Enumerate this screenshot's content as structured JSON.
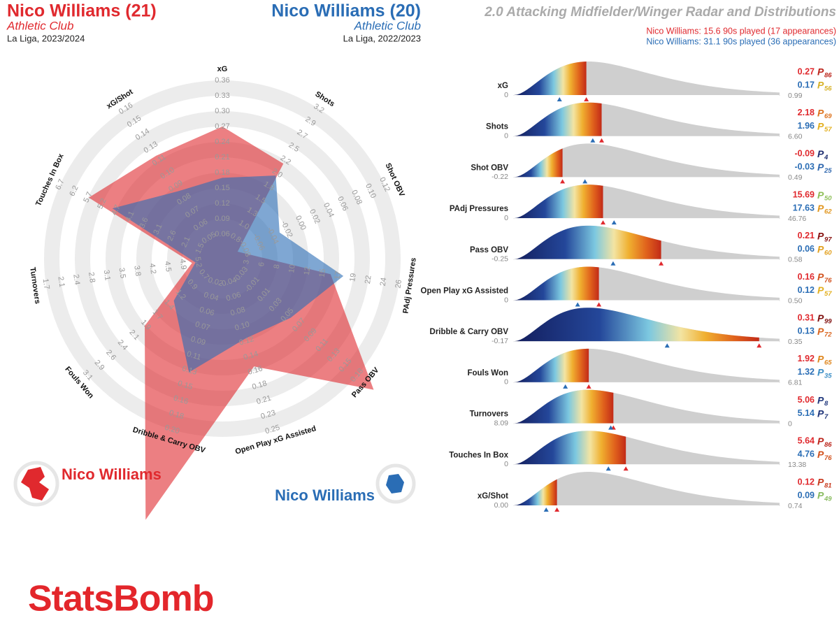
{
  "header": {
    "left": {
      "title": "Nico Williams (21)",
      "team": "Athletic Club",
      "season": "La Liga, 2023/2024"
    },
    "right": {
      "title": "Nico Williams (20)",
      "team": "Athletic Club",
      "season": "La Liga, 2022/2023"
    },
    "title": "2.0 Attacking Midfielder/Winger Radar and Distributions",
    "played": [
      "Nico Williams: 15.6 90s played (17 appearances)",
      "Nico Williams: 31.1 90s played (36 appearances)"
    ]
  },
  "logo": "StatsBomb",
  "chart_data": [
    {
      "type": "radar",
      "series": [
        {
          "name": "Nico Williams",
          "color": "#e0292e",
          "values": [
            0.27,
            2.18,
            -0.09,
            15.69,
            0.21,
            0.16,
            0.31,
            1.92,
            5.06,
            5.64,
            0.12
          ]
        },
        {
          "name": "Nico Williams",
          "color": "#2a6db5",
          "values": [
            0.17,
            1.96,
            -0.03,
            17.63,
            0.06,
            0.12,
            0.13,
            1.32,
            5.14,
            4.76,
            0.09
          ]
        }
      ],
      "axes": [
        {
          "name": "xG",
          "lim": [
            0.06,
            0.36
          ],
          "ticks": [
            0.06,
            0.09,
            0.12,
            0.15,
            0.18,
            0.21,
            0.24,
            0.27,
            {
              "value": 0.3,
              "label": "0.30"
            },
            0.33,
            0.36
          ]
        },
        {
          "name": "Shots",
          "lim": [
            0.8,
            3.2
          ],
          "ticks": [
            0.8,
            {
              "value": 1,
              "label": "1.0"
            },
            1.3,
            1.5,
            1.8,
            {
              "value": 2,
              "label": "2.0"
            },
            2.2,
            2.5,
            2.7,
            2.9,
            3.2
          ]
        },
        {
          "name": "Shot OBV",
          "lim": [
            -0.08,
            0.12
          ],
          "ticks": [
            -0.08,
            -0.06,
            -0.04,
            -0.02,
            {
              "value": 0,
              "label": "0.00"
            },
            0.02,
            0.04,
            0.06,
            0.08,
            {
              "value": 0.1,
              "label": "0.10"
            },
            0.12
          ]
        },
        {
          "name": "PAdj Pressures",
          "lim": [
            3,
            26
          ],
          "ticks": [
            3,
            6,
            8,
            10,
            12,
            15,
            17,
            19,
            22,
            24,
            26
          ]
        },
        {
          "name": "Pass OBV",
          "lim": [
            -0.03,
            0.18
          ],
          "ticks": [
            -0.03,
            -0.01,
            0.01,
            0.03,
            0.05,
            0.07,
            0.09,
            0.11,
            0.13,
            0.15,
            0.18
          ]
        },
        {
          "name": "Open Play xG Assisted",
          "lim": [
            0.04,
            0.25
          ],
          "ticks": [
            0.04,
            0.06,
            0.08,
            {
              "value": 0.1,
              "label": "0.10"
            },
            0.12,
            0.14,
            0.16,
            0.18,
            0.21,
            0.23,
            0.25
          ]
        },
        {
          "name": "Dribble & Carry OBV",
          "lim": [
            0.02,
            0.2
          ],
          "ticks": [
            0.02,
            0.04,
            0.06,
            0.07,
            0.09,
            0.11,
            0.13,
            0.15,
            0.16,
            0.18,
            {
              "value": 0.2,
              "label": "0.20"
            }
          ]
        },
        {
          "name": "Fouls Won",
          "lim": [
            0.7,
            3.1
          ],
          "ticks": [
            0.7,
            0.9,
            1.2,
            1.4,
            1.7,
            1.9,
            2.1,
            2.4,
            2.6,
            2.9,
            3.1
          ]
        },
        {
          "name": "Turnovers",
          "lim": [
            5.2,
            1.7
          ],
          "ticks": [
            5.2,
            4.9,
            4.5,
            4.2,
            3.8,
            3.5,
            3.1,
            2.8,
            2.4,
            2.1,
            1.7
          ]
        },
        {
          "name": "Touches In Box",
          "lim": [
            1.5,
            6.7
          ],
          "ticks": [
            1.5,
            2.1,
            2.6,
            3.1,
            3.6,
            4.1,
            4.7,
            5.2,
            5.7,
            6.2,
            6.7
          ]
        },
        {
          "name": "xG/Shot",
          "lim": [
            0.05,
            0.16
          ],
          "ticks": [
            0.05,
            0.06,
            0.07,
            0.08,
            0.09,
            {
              "value": 0.1,
              "label": "0.10"
            },
            0.11,
            0.13,
            0.14,
            0.15,
            0.16
          ]
        }
      ]
    },
    {
      "type": "distributions",
      "percentile_prefix": "P",
      "colors": [
        "#e0292e",
        "#2a6db5"
      ],
      "rows": [
        {
          "name": "xG",
          "xlim": [
            0,
            0.99
          ],
          "xticks": [
            0,
            0.99
          ],
          "values": [
            0.27,
            0.17
          ],
          "percentiles": [
            86,
            56
          ]
        },
        {
          "name": "Shots",
          "xlim": [
            0,
            6.6
          ],
          "xticks": [
            0,
            {
              "value": 6.6,
              "label": "6.60"
            }
          ],
          "values": [
            2.18,
            1.96
          ],
          "percentiles": [
            69,
            57
          ]
        },
        {
          "name": "Shot OBV",
          "xlim": [
            -0.22,
            0.49
          ],
          "xticks": [
            -0.22,
            0.49
          ],
          "values": [
            -0.09,
            -0.03
          ],
          "percentiles": [
            4,
            25
          ]
        },
        {
          "name": "PAdj Pressures",
          "xlim": [
            0,
            46.76
          ],
          "xticks": [
            0,
            46.76
          ],
          "values": [
            15.69,
            17.63
          ],
          "percentiles": [
            50,
            62
          ]
        },
        {
          "name": "Pass OBV",
          "xlim": [
            -0.25,
            0.58
          ],
          "xticks": [
            -0.25,
            0.58
          ],
          "values": [
            0.21,
            0.06
          ],
          "percentiles": [
            97,
            60
          ]
        },
        {
          "name": "Open Play xG Assisted",
          "xlim": [
            0,
            0.5
          ],
          "xticks": [
            0,
            {
              "value": 0.5,
              "label": "0.50"
            }
          ],
          "values": [
            0.16,
            0.12
          ],
          "percentiles": [
            76,
            57
          ]
        },
        {
          "name": "Dribble & Carry OBV",
          "xlim": [
            -0.17,
            0.35
          ],
          "xticks": [
            -0.17,
            0.35
          ],
          "values": [
            0.31,
            0.13
          ],
          "percentiles": [
            99,
            72
          ]
        },
        {
          "name": "Fouls Won",
          "xlim": [
            0,
            6.81
          ],
          "xticks": [
            0,
            6.81
          ],
          "values": [
            1.92,
            1.32
          ],
          "percentiles": [
            65,
            35
          ]
        },
        {
          "name": "Turnovers",
          "xlim": [
            8.09,
            0
          ],
          "xticks": [
            8.09,
            0
          ],
          "values": [
            5.06,
            5.14
          ],
          "percentiles": [
            8,
            7
          ]
        },
        {
          "name": "Touches In Box",
          "xlim": [
            0,
            13.38
          ],
          "xticks": [
            0,
            13.38
          ],
          "values": [
            5.64,
            4.76
          ],
          "percentiles": [
            86,
            76
          ]
        },
        {
          "name": "xG/Shot",
          "xlim": [
            0,
            0.74
          ],
          "xticks": [
            {
              "value": 0,
              "label": "0.00"
            },
            0.74
          ],
          "values": [
            0.12,
            0.09
          ],
          "percentiles": [
            81,
            49
          ]
        }
      ]
    }
  ]
}
